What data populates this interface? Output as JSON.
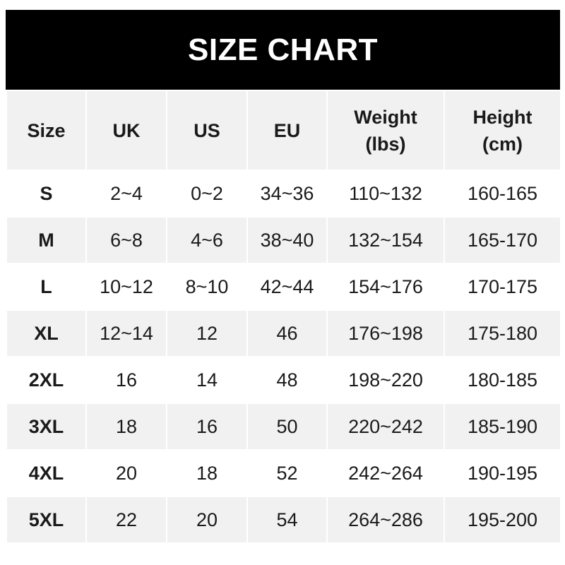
{
  "title": "SIZE CHART",
  "headers": [
    "Size",
    "UK",
    "US",
    "EU",
    "Weight\n(lbs)",
    "Height\n(cm)"
  ],
  "rows": [
    [
      "S",
      "2~4",
      "0~2",
      "34~36",
      "110~132",
      "160-165"
    ],
    [
      "M",
      "6~8",
      "4~6",
      "38~40",
      "132~154",
      "165-170"
    ],
    [
      "L",
      "10~12",
      "8~10",
      "42~44",
      "154~176",
      "170-175"
    ],
    [
      "XL",
      "12~14",
      "12",
      "46",
      "176~198",
      "175-180"
    ],
    [
      "2XL",
      "16",
      "14",
      "48",
      "198~220",
      "180-185"
    ],
    [
      "3XL",
      "18",
      "16",
      "50",
      "220~242",
      "185-190"
    ],
    [
      "4XL",
      "20",
      "18",
      "52",
      "242~264",
      "190-195"
    ],
    [
      "5XL",
      "22",
      "20",
      "54",
      "264~286",
      "195-200"
    ]
  ]
}
